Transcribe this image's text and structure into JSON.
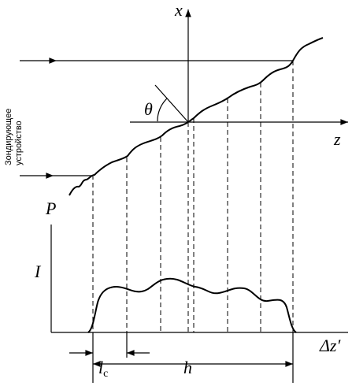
{
  "labels": {
    "x_axis": "x",
    "z_axis": "z",
    "theta": "θ",
    "P": "P",
    "I": "I",
    "dz": "Δz′",
    "lc": "l",
    "lc_sub": "c",
    "h": "h",
    "device": [
      "Зондирующее",
      "устройство"
    ]
  }
}
